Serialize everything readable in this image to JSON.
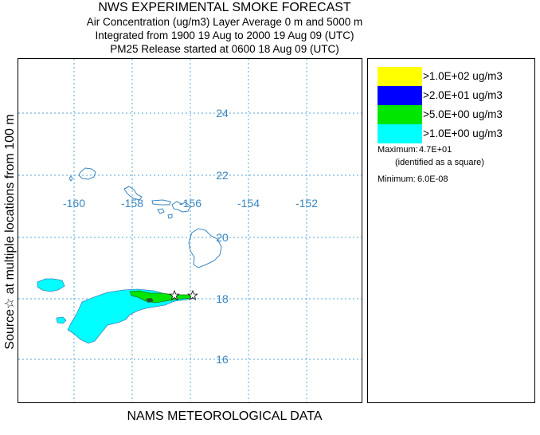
{
  "header": {
    "title": "NWS EXPERIMENTAL SMOKE FORECAST",
    "line2": "Air Concentration (ug/m3) Layer Average    0 m and  5000 m",
    "line3": "Integrated from 1900 19 Aug to 2000 19 Aug 09 (UTC)",
    "line4": "PM25 Release started at 0600 18 Aug 09 (UTC)"
  },
  "side_label": "Source☆ at multiple locations from 100 m",
  "bottom_label": "NAMS METEOROLOGICAL DATA",
  "map": {
    "longitude_labels": [
      "-160",
      "-158",
      "-156",
      "-154",
      "-152"
    ],
    "latitude_labels": [
      "24",
      "22",
      "20",
      "18",
      "16"
    ],
    "gridline_color": "#56a6d6",
    "coastline_color": "#3a86c0",
    "label_color": "#3a86c0",
    "source_markers": [
      "star",
      "star"
    ]
  },
  "legend": {
    "items": [
      {
        "label": ">1.0E+02 ug/m3",
        "color": "#ffff00"
      },
      {
        "label": ">2.0E+01 ug/m3",
        "color": "#0000ff"
      },
      {
        "label": ">5.0E+00 ug/m3",
        "color": "#00e600"
      },
      {
        "label": ">1.0E+00 ug/m3",
        "color": "#00ffff"
      }
    ],
    "maximum_label": "Maximum:",
    "maximum_value": "4.7E+01",
    "maximum_note": "(identified as a square)",
    "minimum_label": "Minimum:",
    "minimum_value": "6.0E-08"
  }
}
